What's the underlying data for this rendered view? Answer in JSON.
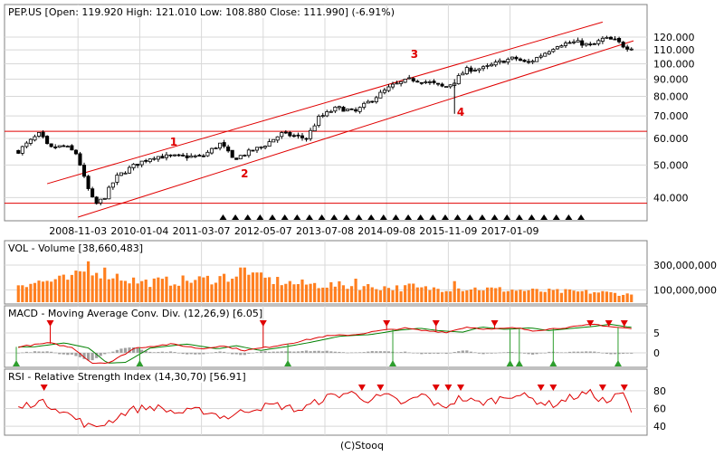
{
  "footer": "(C)Stooq",
  "colors": {
    "background": "#ffffff",
    "frame": "#808080",
    "grid": "#d8d8d8",
    "up_candle": "#ffffff",
    "down_candle": "#000000",
    "channel": "#e00000",
    "volume_bar": "#ff7f1f",
    "macd_line": "#dd0000",
    "signal_line": "#008000",
    "histogram": "#a0a0a0",
    "rsi_line": "#dd0000",
    "buy_marker": "#2e9e2e",
    "sell_marker": "#e00000",
    "event_marker": "#000000"
  },
  "chart_data": [
    {
      "type": "candlestick",
      "title": "PEP.US [Open: 119.920  High: 121.010  Low: 108.880  Close: 111.990]  (-6.91%)",
      "scale": "log",
      "ylim": [
        35,
        135
      ],
      "ytick_labels": [
        "40.000",
        "50.000",
        "60.000",
        "70.000",
        "80.000",
        "90.000",
        "100.000",
        "110.000",
        "120.000"
      ],
      "ytick_values": [
        40,
        50,
        60,
        70,
        80,
        90,
        100,
        110,
        120
      ],
      "xtick_labels": [
        "2008-11-03",
        "2010-01-04",
        "2011-03-07",
        "2012-05-07",
        "2013-07-08",
        "2014-09-08",
        "2015-11-09",
        "2017-01-09"
      ],
      "xtick_positions": [
        0.1,
        0.2,
        0.3,
        0.4,
        0.5,
        0.6,
        0.7,
        0.8
      ],
      "price_anchors": [
        [
          0.0,
          55
        ],
        [
          0.02,
          59
        ],
        [
          0.035,
          62
        ],
        [
          0.05,
          56
        ],
        [
          0.075,
          57
        ],
        [
          0.095,
          54
        ],
        [
          0.11,
          44
        ],
        [
          0.125,
          38
        ],
        [
          0.14,
          40
        ],
        [
          0.16,
          46
        ],
        [
          0.19,
          50
        ],
        [
          0.22,
          53
        ],
        [
          0.26,
          53
        ],
        [
          0.3,
          53
        ],
        [
          0.33,
          58
        ],
        [
          0.35,
          52
        ],
        [
          0.37,
          54
        ],
        [
          0.4,
          57
        ],
        [
          0.43,
          62
        ],
        [
          0.47,
          60
        ],
        [
          0.49,
          69
        ],
        [
          0.52,
          74
        ],
        [
          0.55,
          72
        ],
        [
          0.58,
          79
        ],
        [
          0.61,
          86
        ],
        [
          0.64,
          90
        ],
        [
          0.67,
          88
        ],
        [
          0.695,
          85
        ],
        [
          0.71,
          88
        ],
        [
          0.73,
          96
        ],
        [
          0.76,
          97
        ],
        [
          0.79,
          102
        ],
        [
          0.81,
          104
        ],
        [
          0.83,
          100
        ],
        [
          0.86,
          108
        ],
        [
          0.88,
          114
        ],
        [
          0.91,
          116
        ],
        [
          0.935,
          113
        ],
        [
          0.955,
          119
        ],
        [
          0.975,
          117
        ],
        [
          0.99,
          112
        ]
      ],
      "channel_upper": {
        "start": [
          0.05,
          44
        ],
        "end": [
          0.95,
          133
        ]
      },
      "channel_lower": {
        "start": [
          0.1,
          35
        ],
        "end": [
          1.0,
          117
        ]
      },
      "horizontal_lines": [
        63,
        38.5
      ],
      "annotations": [
        {
          "label": "1",
          "x": 0.255,
          "y": 57
        },
        {
          "label": "2",
          "x": 0.37,
          "y": 46
        },
        {
          "label": "3",
          "x": 0.645,
          "y": 104
        },
        {
          "label": "4",
          "x": 0.72,
          "y": 70
        }
      ],
      "event_markers": [
        0.335,
        0.355,
        0.375,
        0.395,
        0.415,
        0.435,
        0.455,
        0.475,
        0.495,
        0.515,
        0.535,
        0.555,
        0.575,
        0.595,
        0.615,
        0.635,
        0.655,
        0.675,
        0.695,
        0.715,
        0.735,
        0.755,
        0.775,
        0.795,
        0.815,
        0.835,
        0.855,
        0.875,
        0.895,
        0.915
      ]
    },
    {
      "type": "bar",
      "title": "VOL - Volume [38,660,483]",
      "ylim": [
        0,
        380000000
      ],
      "ytick_labels": [
        "100,000,000",
        "300,000,000"
      ],
      "ytick_values": [
        100000000,
        300000000
      ],
      "volume_anchors": [
        [
          0.0,
          150000000
        ],
        [
          0.05,
          170000000
        ],
        [
          0.09,
          190000000
        ],
        [
          0.115,
          290000000
        ],
        [
          0.14,
          240000000
        ],
        [
          0.2,
          160000000
        ],
        [
          0.3,
          180000000
        ],
        [
          0.36,
          220000000
        ],
        [
          0.45,
          150000000
        ],
        [
          0.55,
          130000000
        ],
        [
          0.65,
          110000000
        ],
        [
          0.75,
          110000000
        ],
        [
          0.85,
          90000000
        ],
        [
          0.95,
          80000000
        ],
        [
          1.0,
          60000000
        ]
      ],
      "spikes": [
        [
          0.115,
          330000000
        ],
        [
          0.365,
          280000000
        ],
        [
          0.385,
          240000000
        ],
        [
          0.27,
          200000000
        ],
        [
          0.55,
          190000000
        ],
        [
          0.64,
          150000000
        ],
        [
          0.71,
          170000000
        ]
      ]
    },
    {
      "type": "line",
      "title": "MACD - Moving Average Conv. Div. (12,26,9) [6.05]",
      "ylim": [
        -3.2,
        8.2
      ],
      "ytick_labels": [
        "5",
        "0"
      ],
      "ytick_values": [
        5,
        0
      ],
      "macd_anchors": [
        [
          0.0,
          1.5
        ],
        [
          0.05,
          2.5
        ],
        [
          0.09,
          1.2
        ],
        [
          0.12,
          -2.6
        ],
        [
          0.15,
          -2.4
        ],
        [
          0.19,
          1.2
        ],
        [
          0.25,
          2.2
        ],
        [
          0.3,
          1.0
        ],
        [
          0.33,
          1.8
        ],
        [
          0.37,
          0.6
        ],
        [
          0.41,
          1.5
        ],
        [
          0.45,
          2.6
        ],
        [
          0.5,
          4.2
        ],
        [
          0.55,
          4.6
        ],
        [
          0.59,
          5.6
        ],
        [
          0.63,
          6.2
        ],
        [
          0.66,
          5.6
        ],
        [
          0.7,
          5.2
        ],
        [
          0.73,
          6.5
        ],
        [
          0.77,
          5.9
        ],
        [
          0.81,
          6.3
        ],
        [
          0.84,
          5.6
        ],
        [
          0.88,
          6.2
        ],
        [
          0.91,
          6.6
        ],
        [
          0.94,
          7.2
        ],
        [
          0.97,
          6.5
        ],
        [
          1.0,
          6.1
        ]
      ],
      "signal_lag": 0.025,
      "buy_markers": [
        0.0,
        0.2,
        0.44,
        0.61,
        0.8,
        0.815,
        0.87,
        0.975
      ],
      "sell_markers": [
        0.055,
        0.4,
        0.6,
        0.68,
        0.775,
        0.93,
        0.96,
        0.985
      ]
    },
    {
      "type": "line",
      "title": "RSI - Relative Strength Index (14,30,70) [56.91]",
      "ylim": [
        32,
        90
      ],
      "ytick_labels": [
        "80",
        "60",
        "40"
      ],
      "ytick_values": [
        80,
        60,
        40
      ],
      "rsi_anchors": [
        [
          0.0,
          60
        ],
        [
          0.03,
          68
        ],
        [
          0.06,
          62
        ],
        [
          0.09,
          50
        ],
        [
          0.12,
          38
        ],
        [
          0.15,
          46
        ],
        [
          0.18,
          58
        ],
        [
          0.22,
          62
        ],
        [
          0.26,
          55
        ],
        [
          0.3,
          58
        ],
        [
          0.34,
          50
        ],
        [
          0.38,
          60
        ],
        [
          0.42,
          64
        ],
        [
          0.46,
          58
        ],
        [
          0.5,
          72
        ],
        [
          0.54,
          78
        ],
        [
          0.57,
          70
        ],
        [
          0.6,
          74
        ],
        [
          0.63,
          65
        ],
        [
          0.66,
          76
        ],
        [
          0.69,
          60
        ],
        [
          0.72,
          72
        ],
        [
          0.75,
          66
        ],
        [
          0.78,
          70
        ],
        [
          0.81,
          77
        ],
        [
          0.84,
          70
        ],
        [
          0.87,
          64
        ],
        [
          0.9,
          72
        ],
        [
          0.93,
          78
        ],
        [
          0.96,
          67
        ],
        [
          0.985,
          78
        ],
        [
          1.0,
          57
        ]
      ],
      "sell_markers": [
        0.045,
        0.56,
        0.59,
        0.68,
        0.7,
        0.72,
        0.85,
        0.87,
        0.95,
        0.985
      ]
    }
  ]
}
